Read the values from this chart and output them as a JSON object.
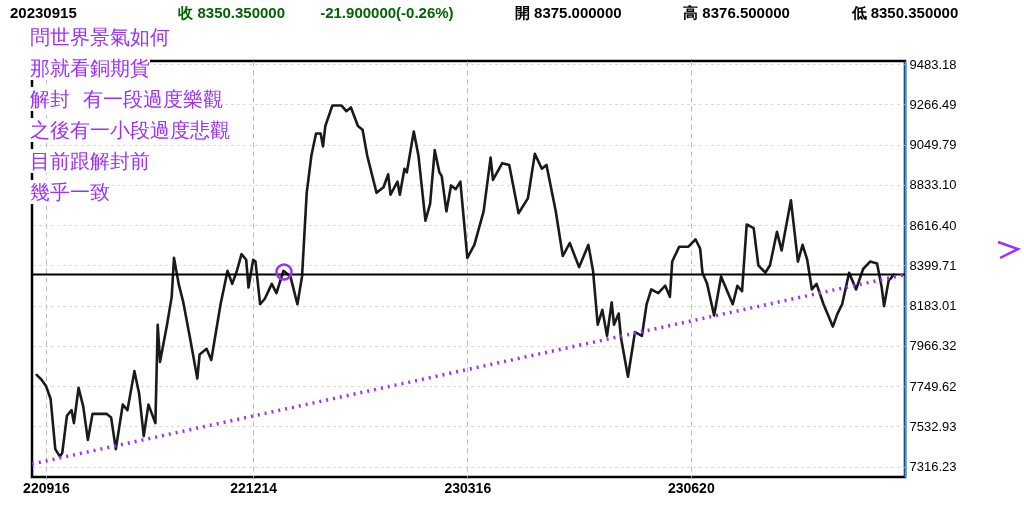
{
  "chart_data": {
    "type": "line",
    "annotations": [
      "20230915",
      "收 8350.350000",
      "-21.900000(-0.26%)",
      "開 8375.000000",
      "高 8376.500000",
      "低 8350.350000",
      "問世界景氣如何",
      "那就看銅期貨",
      "解封  有一段過度樂觀",
      "之後有一小段過度悲觀",
      "目前跟解封前",
      "幾乎一致"
    ],
    "xlim": [
      "2022-09-10",
      "2023-09-20"
    ],
    "xticks": [
      {
        "value": "2022-09-16",
        "label": "220916"
      },
      {
        "value": "2022-12-14",
        "label": "221214"
      },
      {
        "value": "2023-03-16",
        "label": "230316"
      },
      {
        "value": "2023-06-20",
        "label": "230620"
      }
    ],
    "ylim": [
      7260,
      9500
    ],
    "yticks": [
      7316.23,
      7532.93,
      7749.62,
      7966.32,
      8183.01,
      8399.71,
      {
        "value": 8616.4,
        "label": "8616.40"
      },
      {
        "value": 8833.1,
        "label": "8833.10"
      },
      9049.79,
      9266.49,
      9483.18
    ],
    "grid": true,
    "ref_lines": [
      {
        "axis": "y",
        "value": 8350.35,
        "color": "#000000"
      }
    ],
    "series": [
      {
        "color": "#1a1a1a",
        "x": [
          "2022-09-12",
          "2022-09-14",
          "2022-09-16",
          "2022-09-18",
          "2022-09-20",
          "2022-09-22",
          "2022-09-23",
          "2022-09-25",
          "2022-09-27",
          "2022-09-28",
          "2022-09-30",
          "2022-10-02",
          "2022-10-04",
          "2022-10-06",
          "2022-10-08",
          "2022-10-12",
          "2022-10-14",
          "2022-10-16",
          "2022-10-19",
          "2022-10-21",
          "2022-10-24",
          "2022-10-26",
          "2022-10-28",
          "2022-10-30",
          "2022-11-02",
          "2022-11-03",
          "2022-11-04",
          "2022-11-07",
          "2022-11-09",
          "2022-11-10",
          "2022-11-12",
          "2022-11-14",
          "2022-11-17",
          "2022-11-20",
          "2022-11-21",
          "2022-11-24",
          "2022-11-26",
          "2022-11-30",
          "2022-12-03",
          "2022-12-05",
          "2022-12-07",
          "2022-12-09",
          "2022-12-11",
          "2022-12-12",
          "2022-12-14",
          "2022-12-15",
          "2022-12-17",
          "2022-12-19",
          "2022-12-22",
          "2022-12-24",
          "2022-12-27",
          "2022-12-30",
          "2023-01-02",
          "2023-01-04",
          "2023-01-06",
          "2023-01-08",
          "2023-01-10",
          "2023-01-12",
          "2023-01-13",
          "2023-01-14",
          "2023-01-17",
          "2023-01-21",
          "2023-01-23",
          "2023-01-25",
          "2023-01-28",
          "2023-01-30",
          "2023-02-01",
          "2023-02-05",
          "2023-02-08",
          "2023-02-10",
          "2023-02-11",
          "2023-02-14",
          "2023-02-15",
          "2023-02-17",
          "2023-02-18",
          "2023-02-21",
          "2023-02-23",
          "2023-02-26",
          "2023-02-28",
          "2023-03-02",
          "2023-03-04",
          "2023-03-05",
          "2023-03-07",
          "2023-03-09",
          "2023-03-11",
          "2023-03-13",
          "2023-03-16",
          "2023-03-19",
          "2023-03-23",
          "2023-03-26",
          "2023-03-27",
          "2023-03-31",
          "2023-04-03",
          "2023-04-07",
          "2023-04-11",
          "2023-04-14",
          "2023-04-17",
          "2023-04-19",
          "2023-04-23",
          "2023-04-26",
          "2023-04-29",
          "2023-05-03",
          "2023-05-07",
          "2023-05-09",
          "2023-05-11",
          "2023-05-13",
          "2023-05-15",
          "2023-05-17",
          "2023-05-18",
          "2023-05-20",
          "2023-05-21",
          "2023-05-24",
          "2023-05-27",
          "2023-05-30",
          "2023-06-01",
          "2023-06-03",
          "2023-06-06",
          "2023-06-09",
          "2023-06-11",
          "2023-06-12",
          "2023-06-15",
          "2023-06-19",
          "2023-06-22",
          "2023-06-24",
          "2023-06-25",
          "2023-06-27",
          "2023-06-30",
          "2023-07-03",
          "2023-07-08",
          "2023-07-10",
          "2023-07-12",
          "2023-07-14",
          "2023-07-17",
          "2023-07-19",
          "2023-07-22",
          "2023-07-24",
          "2023-07-27",
          "2023-07-29",
          "2023-08-02",
          "2023-08-05",
          "2023-08-07",
          "2023-08-09",
          "2023-08-11",
          "2023-08-13",
          "2023-08-16",
          "2023-08-20",
          "2023-08-22",
          "2023-08-24",
          "2023-08-27",
          "2023-08-30",
          "2023-09-02",
          "2023-09-05",
          "2023-09-08",
          "2023-09-10",
          "2023-09-11",
          "2023-09-13",
          "2023-09-14",
          "2023-09-15"
        ],
        "values": [
          7810,
          7785,
          7750,
          7680,
          7410,
          7370,
          7390,
          7590,
          7620,
          7550,
          7740,
          7640,
          7460,
          7600,
          7600,
          7600,
          7580,
          7410,
          7650,
          7620,
          7830,
          7710,
          7480,
          7650,
          7550,
          8080,
          7880,
          8080,
          8230,
          8440,
          8300,
          8200,
          8000,
          7790,
          7920,
          7950,
          7890,
          8190,
          8370,
          8300,
          8370,
          8460,
          8430,
          8280,
          8430,
          8420,
          8190,
          8220,
          8300,
          8250,
          8370,
          8340,
          8190,
          8340,
          8790,
          8990,
          9110,
          9110,
          9040,
          9150,
          9260,
          9260,
          9230,
          9250,
          9150,
          9130,
          8990,
          8790,
          8820,
          8890,
          8780,
          8850,
          8780,
          8920,
          8900,
          9120,
          8990,
          8640,
          8730,
          9020,
          8900,
          8880,
          8690,
          8830,
          8810,
          8850,
          8440,
          8510,
          8690,
          8980,
          8860,
          8950,
          8940,
          8680,
          8760,
          9000,
          8920,
          8940,
          8690,
          8450,
          8520,
          8390,
          8510,
          8370,
          8080,
          8160,
          8020,
          8200,
          8080,
          8140,
          8010,
          7800,
          8040,
          8020,
          8190,
          8270,
          8250,
          8290,
          8230,
          8420,
          8500,
          8500,
          8540,
          8490,
          8360,
          8300,
          8130,
          8340,
          8190,
          8290,
          8260,
          8620,
          8600,
          8400,
          8360,
          8400,
          8580,
          8480,
          8750,
          8420,
          8510,
          8430,
          8270,
          8300,
          8190,
          8070,
          8140,
          8190,
          8360,
          8270,
          8380,
          8420,
          8410,
          8280,
          8180,
          8320,
          8330,
          8350
        ]
      },
      {
        "type": "line",
        "line_style": "dotted",
        "color": "#9b30ff",
        "x": [
          "2022-09-10",
          "2023-09-20"
        ],
        "values": [
          7330,
          8350
        ]
      }
    ]
  }
}
